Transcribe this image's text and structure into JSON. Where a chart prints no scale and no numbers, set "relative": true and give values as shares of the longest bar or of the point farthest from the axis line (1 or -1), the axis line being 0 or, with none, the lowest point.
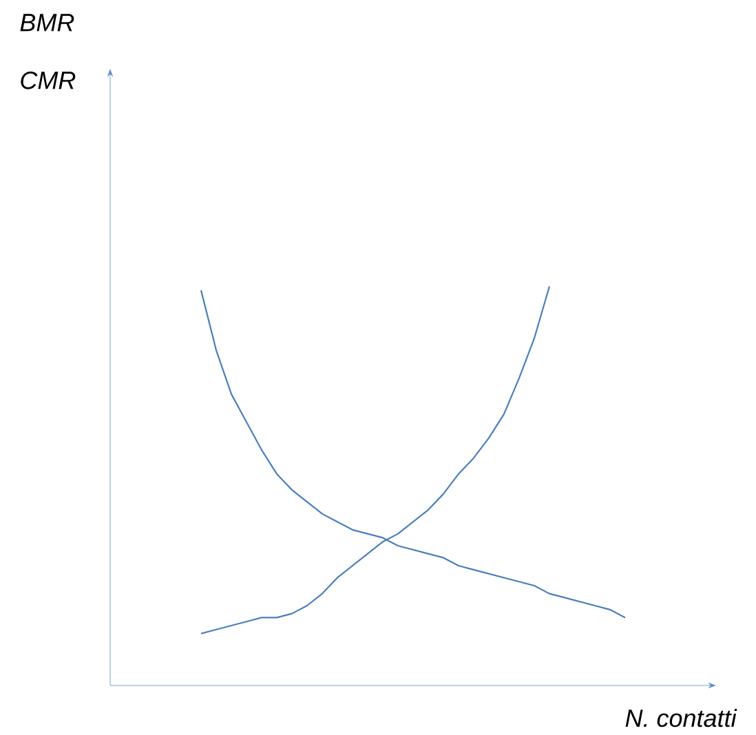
{
  "chart_data": {
    "type": "line",
    "relative": true,
    "ylabel": "BMR CMR",
    "xlabel": "N. contatti",
    "categories": [
      null,
      null,
      null,
      null,
      null,
      null,
      null,
      null,
      null,
      null,
      null,
      null,
      null,
      null,
      null,
      null,
      null,
      null,
      null,
      null,
      null,
      null,
      null,
      null,
      null,
      null,
      null,
      null,
      null,
      null,
      null,
      null,
      null,
      null,
      null,
      null,
      null,
      null,
      null,
      null,
      null
    ],
    "series": [
      {
        "color": "#4a7ebb",
        "values": [
          null,
          null,
          null,
          null,
          null,
          null,
          0.99,
          0.84,
          0.73,
          0.66,
          0.59,
          0.53,
          0.49,
          0.46,
          0.43,
          0.41,
          0.39,
          0.38,
          0.37,
          0.35,
          0.34,
          0.33,
          0.32,
          0.3,
          0.29,
          0.28,
          0.27,
          0.26,
          0.25,
          0.23,
          0.22,
          0.21,
          0.2,
          0.19,
          0.17,
          null,
          null,
          null,
          null,
          null,
          null
        ]
      },
      {
        "color": "#4a7ebb",
        "values": [
          null,
          null,
          null,
          null,
          null,
          null,
          0.13,
          0.14,
          0.15,
          0.16,
          0.17,
          0.17,
          0.18,
          0.2,
          0.23,
          0.27,
          0.3,
          0.33,
          0.36,
          0.38,
          0.41,
          0.44,
          0.48,
          0.53,
          0.57,
          0.62,
          0.68,
          0.77,
          0.87,
          1,
          null,
          null,
          null,
          null,
          null,
          null,
          null,
          null,
          null,
          null,
          null
        ]
      }
    ]
  }
}
